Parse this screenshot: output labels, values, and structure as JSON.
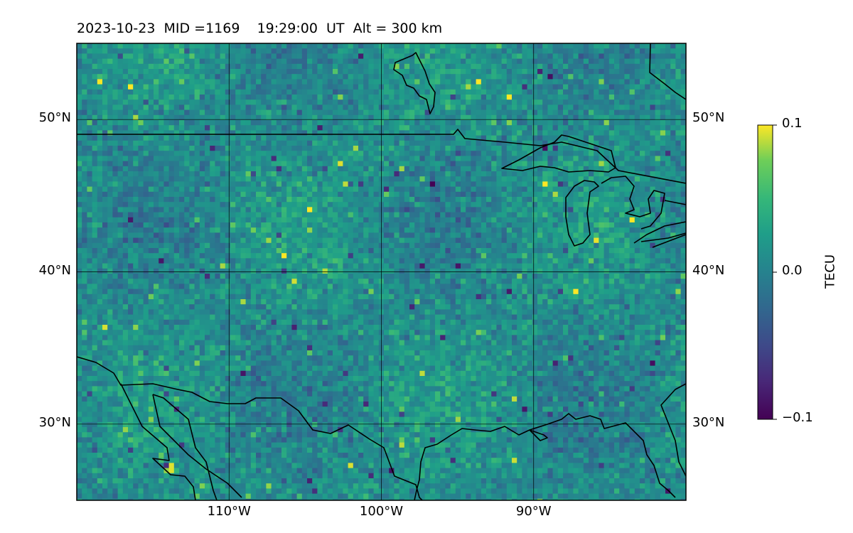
{
  "title": {
    "date": "2023-10-23",
    "mid": "1169",
    "time": "19:29:00",
    "altitude": "300 km",
    "text": "2023-10-23  MID =1169    19:29:00  UT  Alt = 300 km"
  },
  "map": {
    "extent": {
      "lon": [
        -120,
        -80
      ],
      "lat": [
        25,
        55
      ]
    },
    "lat_ticks": [
      {
        "value": 50,
        "label": "50°N"
      },
      {
        "value": 40,
        "label": "40°N"
      },
      {
        "value": 30,
        "label": "30°N"
      }
    ],
    "lon_ticks": [
      {
        "value": -110,
        "label": "110°W"
      },
      {
        "value": -100,
        "label": "100°W"
      },
      {
        "value": -90,
        "label": "90°W"
      }
    ],
    "gridlines": true,
    "coastlines": true,
    "borders": true
  },
  "colorbar": {
    "label": "TECU",
    "colormap": "viridis",
    "vmin": -0.1,
    "vmax": 0.1,
    "ticks": [
      {
        "value": 0.1,
        "label": "0.1"
      },
      {
        "value": 0.0,
        "label": "0.0"
      },
      {
        "value": -0.1,
        "label": "−0.1"
      }
    ]
  },
  "colors": {
    "viridis_low": "#440154",
    "viridis_mid": "#21918c",
    "viridis_high": "#fde725",
    "coastline": "#000000"
  }
}
